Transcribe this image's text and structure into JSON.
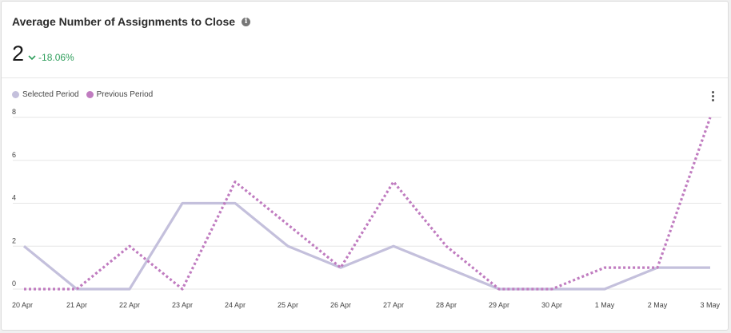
{
  "card": {
    "title": "Average Number of Assignments to Close",
    "info_icon": "info-icon",
    "metric_value": "2",
    "trend_icon": "chevron-down-icon",
    "trend_text": "-18.06%",
    "menu_icon": "kebab-menu-icon"
  },
  "colors": {
    "selected": "#c4c0dc",
    "previous": "#c07cc0",
    "trend": "#2e9e5b",
    "grid": "#e6e6e6"
  },
  "chart_data": {
    "type": "line",
    "title": "",
    "xlabel": "",
    "ylabel": "",
    "ylim": [
      0,
      8
    ],
    "yticks": [
      0,
      2,
      4,
      6,
      8
    ],
    "grid": true,
    "legend_position": "top-left",
    "categories": [
      "20 Apr",
      "21 Apr",
      "22 Apr",
      "23 Apr",
      "24 Apr",
      "25 Apr",
      "26 Apr",
      "27 Apr",
      "28 Apr",
      "29 Apr",
      "30 Apr",
      "1 May",
      "2 May",
      "3 May"
    ],
    "series": [
      {
        "name": "Selected Period",
        "style": "solid",
        "values": [
          2,
          0,
          0,
          4,
          4,
          2,
          1,
          2,
          1,
          0,
          0,
          0,
          1,
          1
        ]
      },
      {
        "name": "Previous Period",
        "style": "dotted",
        "values": [
          0,
          0,
          2,
          0,
          5,
          3,
          1,
          5,
          2,
          0,
          0,
          1,
          1,
          8
        ]
      }
    ]
  }
}
